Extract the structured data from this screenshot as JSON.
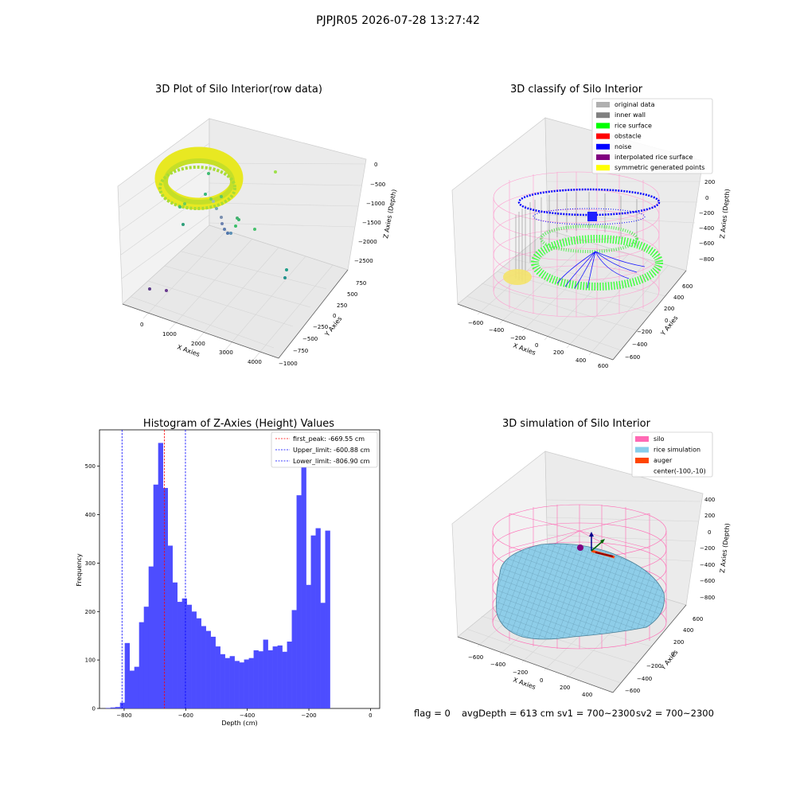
{
  "suptitle": "PJPJR05 2026-07-28 13:27:42",
  "colors": {
    "histogram_bars": "#4d4dff",
    "first_peak_line": "#ff0000",
    "limit_lines": "#0000ff",
    "silo_mesh": "#ff69b4",
    "rice_sim": "#87ceeb",
    "auger": "#ff4500"
  },
  "footer": {
    "flag": "flag = 0",
    "avg_depth": "avgDepth = 613 cm",
    "sv1": "sv1 = 700~2300",
    "sv2": "sv2 = 700~2300"
  },
  "chart_data": [
    {
      "type": "scatter",
      "projection": "3d",
      "title": "3D Plot of Silo Interior(row data)",
      "xlabel": "X Axies",
      "ylabel": "Y Axies",
      "zlabel": "Z Axies (Depth)",
      "x_ticks": [
        "0",
        "1000",
        "2000",
        "3000",
        "4000"
      ],
      "y_ticks": [
        "−1000",
        "−750",
        "−500",
        "−250",
        "0",
        "250",
        "500",
        "750"
      ],
      "z_ticks": [
        "0",
        "−500",
        "−1000",
        "−1500",
        "−2000",
        "−2500"
      ],
      "colormap": "viridis"
    },
    {
      "type": "scatter",
      "projection": "3d",
      "title": "3D classify of Silo Interior",
      "xlabel": "X Axies",
      "ylabel": "Y Axies",
      "zlabel": "Z Axies (Depth)",
      "x_ticks": [
        "−600",
        "−400",
        "−200",
        "0",
        "200",
        "400",
        "600"
      ],
      "y_ticks": [
        "−600",
        "−400",
        "−200",
        "0",
        "200",
        "400",
        "600"
      ],
      "z_ticks": [
        "200",
        "0",
        "−200",
        "−400",
        "−600",
        "−800"
      ],
      "legend": [
        {
          "label": "original data",
          "color": "#b0b0b0"
        },
        {
          "label": "inner wall",
          "color": "#808080"
        },
        {
          "label": "rice surface",
          "color": "#00ff00"
        },
        {
          "label": "obstacle",
          "color": "#ff0000"
        },
        {
          "label": "noise",
          "color": "#0000ff"
        },
        {
          "label": "interpolated rice surface",
          "color": "#800080"
        },
        {
          "label": "symmetric generated points",
          "color": "#ffff00"
        }
      ],
      "legend_loc": "upper right"
    },
    {
      "type": "bar",
      "title": "Histogram of Z-Axies (Height) Values",
      "xlabel": "Depth (cm)",
      "ylabel": "Frequency",
      "xlim": [
        -880,
        30
      ],
      "ylim": [
        0,
        575
      ],
      "x_ticks": [
        -800,
        -600,
        -400,
        -200,
        0
      ],
      "y_ticks": [
        0,
        100,
        200,
        300,
        400,
        500
      ],
      "bin_width": 15.5,
      "bin_start": -860,
      "values": [
        1,
        2,
        3,
        12,
        135,
        78,
        86,
        178,
        210,
        293,
        462,
        548,
        455,
        336,
        260,
        220,
        227,
        214,
        200,
        186,
        170,
        160,
        148,
        128,
        112,
        104,
        108,
        98,
        95,
        101,
        104,
        120,
        118,
        142,
        120,
        128,
        130,
        117,
        138,
        203,
        440,
        500,
        255,
        357,
        372,
        218,
        367
      ],
      "vlines": [
        {
          "x": -669.55,
          "label": "first_peak: -669.55 cm",
          "color": "#ff0000"
        },
        {
          "x": -600.88,
          "label": "Upper_limit: -600.88 cm",
          "color": "#0000ff"
        },
        {
          "x": -806.9,
          "label": "Lower_limit: -806.90 cm",
          "color": "#0000ff"
        }
      ]
    },
    {
      "type": "surface",
      "projection": "3d",
      "title": "3D simulation of Silo Interior",
      "xlabel": "X Axies",
      "ylabel": "Y Axies",
      "zlabel": "Z Axies (Depth)",
      "x_ticks": [
        "−600",
        "−400",
        "−200",
        "0",
        "200",
        "400"
      ],
      "y_ticks": [
        "−600",
        "−400",
        "−200",
        "0",
        "200",
        "400",
        "600"
      ],
      "z_ticks": [
        "400",
        "200",
        "0",
        "−200",
        "−400",
        "−600",
        "−800"
      ],
      "legend": [
        {
          "label": "silo",
          "color": "#ff69b4"
        },
        {
          "label": "rice simulation",
          "color": "#87ceeb"
        },
        {
          "label": "auger",
          "color": "#ff4500"
        },
        {
          "label": "center(-100,-10)",
          "color": ""
        }
      ],
      "legend_loc": "upper right"
    }
  ]
}
